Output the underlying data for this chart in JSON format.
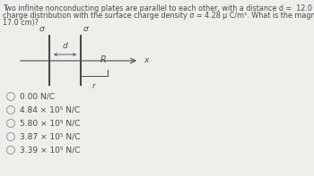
{
  "title_line1": "Two infinite nonconducting plates are parallel to each other, with a distance d =  12.0 cm between them. Each plate carries a uniform",
  "title_line2": "charge distribution with the surface charge density σ = 4.28 μ C/m². What is the magnitude of the electric field at point R (with r =",
  "title_line3": "17.0 cm)?",
  "title_fontsize": 5.8,
  "background_color": "#f0eeeb",
  "options": [
    "0.00 N/C",
    "4.84 × 10⁵ N/C",
    "5.80 × 10⁵ N/C",
    "3.87 × 10⁵ N/C",
    "3.39 × 10⁵ N/C"
  ],
  "option_fontsize": 6.5,
  "text_color": "#4a4a4a",
  "plate_color": "#4a4a4a",
  "arrow_color": "#4a4a4a",
  "sigma_fontsize": 6.5,
  "label_fontsize": 7.0
}
